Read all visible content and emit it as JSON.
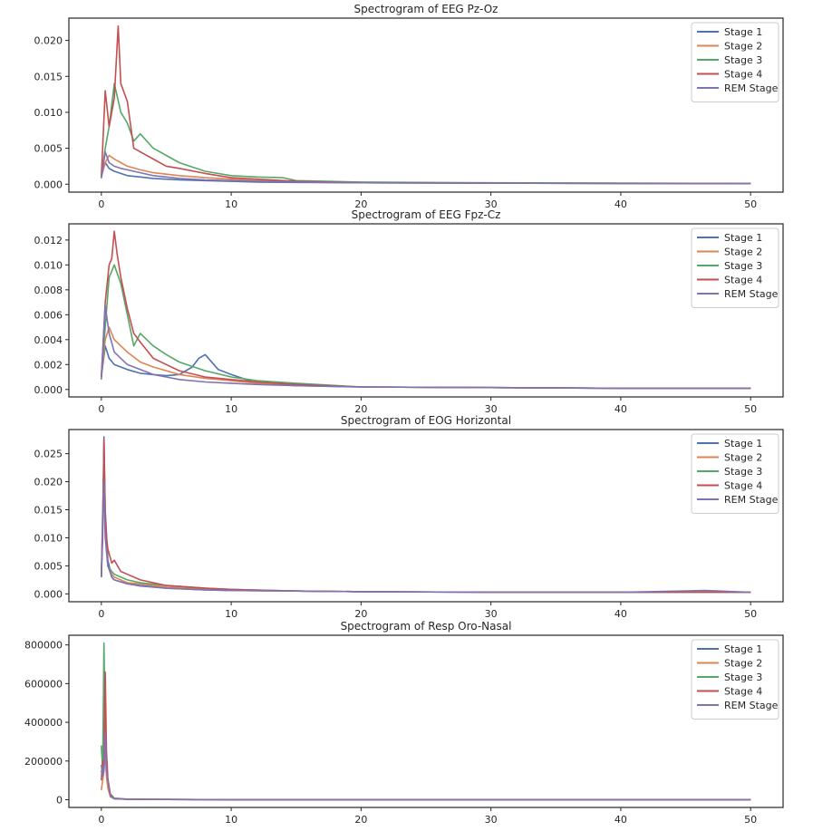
{
  "figure": {
    "colors": {
      "Stage 1": "#4c72b0",
      "Stage 2": "#dd8452",
      "Stage 3": "#55a868",
      "Stage 4": "#c44e52",
      "REM Stage": "#8172b3"
    }
  },
  "chart_data": [
    {
      "type": "line",
      "title": "Spectrogram of EEG Pz-Oz",
      "xlabel": "",
      "ylabel": "",
      "xlim": [
        -2.5,
        52.5
      ],
      "ylim": [
        -0.0011,
        0.0231
      ],
      "xticks": [
        "0",
        "10",
        "20",
        "30",
        "40",
        "50"
      ],
      "yticks": [
        "0.000",
        "0.005",
        "0.010",
        "0.015",
        "0.020"
      ],
      "ytick_values": [
        0,
        0.005,
        0.01,
        0.015,
        0.02
      ],
      "grid": false,
      "legend": "top-right",
      "series": [
        {
          "name": "Stage 1",
          "x": [
            0,
            0.3,
            0.6,
            1,
            1.5,
            2,
            3,
            4,
            5,
            6,
            8,
            10,
            12,
            15,
            20,
            30,
            40,
            50
          ],
          "y": [
            0.0012,
            0.003,
            0.0022,
            0.0018,
            0.0015,
            0.0012,
            0.001,
            0.0008,
            0.0007,
            0.0006,
            0.0005,
            0.0004,
            0.0003,
            0.00025,
            0.0002,
            0.00015,
            0.00012,
            0.0001
          ]
        },
        {
          "name": "Stage 2",
          "x": [
            0,
            0.3,
            0.6,
            1,
            1.5,
            2,
            3,
            4,
            5,
            6,
            8,
            10,
            12,
            15,
            20,
            30,
            40,
            50
          ],
          "y": [
            0.001,
            0.003,
            0.004,
            0.0035,
            0.003,
            0.0025,
            0.002,
            0.0016,
            0.0014,
            0.0012,
            0.0009,
            0.0007,
            0.0005,
            0.0004,
            0.0002,
            0.00015,
            0.0001,
            0.0001
          ]
        },
        {
          "name": "Stage 3",
          "x": [
            0,
            0.3,
            0.6,
            1,
            1.5,
            2,
            2.5,
            3,
            4,
            5,
            6,
            8,
            10,
            12,
            14,
            15,
            20,
            30,
            40,
            50
          ],
          "y": [
            0.001,
            0.005,
            0.008,
            0.014,
            0.01,
            0.0085,
            0.006,
            0.007,
            0.005,
            0.004,
            0.003,
            0.0018,
            0.0012,
            0.001,
            0.0009,
            0.0005,
            0.0003,
            0.0002,
            0.00015,
            0.0001
          ]
        },
        {
          "name": "Stage 4",
          "x": [
            0,
            0.3,
            0.6,
            0.8,
            1,
            1.3,
            1.5,
            2,
            2.5,
            3,
            4,
            5,
            6,
            8,
            10,
            12,
            15,
            20,
            30,
            40,
            50
          ],
          "y": [
            0.001,
            0.013,
            0.008,
            0.01,
            0.012,
            0.022,
            0.014,
            0.0115,
            0.005,
            0.0045,
            0.0035,
            0.0025,
            0.0022,
            0.0015,
            0.0009,
            0.0007,
            0.0004,
            0.0002,
            0.00015,
            0.0001,
            0.0001
          ]
        },
        {
          "name": "REM Stage",
          "x": [
            0,
            0.3,
            0.6,
            1,
            1.5,
            2,
            3,
            4,
            5,
            6,
            8,
            10,
            12,
            15,
            20,
            30,
            40,
            50
          ],
          "y": [
            0.0008,
            0.0045,
            0.003,
            0.0025,
            0.0022,
            0.002,
            0.0016,
            0.0012,
            0.001,
            0.0008,
            0.0006,
            0.0005,
            0.0004,
            0.0003,
            0.0002,
            0.00015,
            0.0001,
            0.0001
          ]
        }
      ]
    },
    {
      "type": "line",
      "title": "Spectrogram of EEG Fpz-Cz",
      "xlabel": "",
      "ylabel": "",
      "xlim": [
        -2.5,
        52.5
      ],
      "ylim": [
        -0.0006,
        0.0133
      ],
      "xticks": [
        "0",
        "10",
        "20",
        "30",
        "40",
        "50"
      ],
      "yticks": [
        "0.000",
        "0.002",
        "0.004",
        "0.006",
        "0.008",
        "0.010",
        "0.012"
      ],
      "ytick_values": [
        0,
        0.002,
        0.004,
        0.006,
        0.008,
        0.01,
        0.012
      ],
      "grid": false,
      "legend": "top-right",
      "series": [
        {
          "name": "Stage 1",
          "x": [
            0,
            0.3,
            0.6,
            1,
            1.5,
            2,
            3,
            4,
            5,
            6,
            7,
            7.5,
            8,
            9,
            10,
            12,
            15,
            20,
            30,
            40,
            50
          ],
          "y": [
            0.001,
            0.0035,
            0.0025,
            0.002,
            0.0018,
            0.0016,
            0.0013,
            0.0012,
            0.0011,
            0.0012,
            0.0018,
            0.0025,
            0.0028,
            0.0016,
            0.0012,
            0.0005,
            0.0003,
            0.0002,
            0.00015,
            0.0001,
            0.0001
          ]
        },
        {
          "name": "Stage 2",
          "x": [
            0,
            0.3,
            0.6,
            1,
            1.5,
            2,
            3,
            4,
            5,
            6,
            8,
            10,
            12,
            15,
            20,
            30,
            40,
            50
          ],
          "y": [
            0.001,
            0.004,
            0.005,
            0.004,
            0.0035,
            0.003,
            0.0022,
            0.0018,
            0.0015,
            0.0012,
            0.0009,
            0.0007,
            0.0005,
            0.0004,
            0.0002,
            0.00015,
            0.0001,
            0.0001
          ]
        },
        {
          "name": "Stage 3",
          "x": [
            0,
            0.3,
            0.6,
            0.8,
            1,
            1.5,
            2,
            2.5,
            3,
            4,
            5,
            6,
            8,
            10,
            12,
            15,
            20,
            30,
            40,
            50
          ],
          "y": [
            0.001,
            0.005,
            0.009,
            0.0095,
            0.01,
            0.0085,
            0.006,
            0.0035,
            0.0045,
            0.0035,
            0.0028,
            0.0022,
            0.0015,
            0.001,
            0.0007,
            0.0005,
            0.0002,
            0.00015,
            0.0001,
            0.0001
          ]
        },
        {
          "name": "Stage 4",
          "x": [
            0,
            0.3,
            0.6,
            0.8,
            1,
            1.2,
            1.5,
            2,
            2.5,
            3,
            4,
            5,
            6,
            8,
            10,
            12,
            15,
            20,
            30,
            40,
            50
          ],
          "y": [
            0.001,
            0.007,
            0.01,
            0.0105,
            0.0127,
            0.011,
            0.009,
            0.0065,
            0.0045,
            0.0038,
            0.0025,
            0.002,
            0.0015,
            0.001,
            0.0008,
            0.0006,
            0.0004,
            0.0002,
            0.00015,
            0.0001,
            0.0001
          ]
        },
        {
          "name": "REM Stage",
          "x": [
            0,
            0.3,
            0.6,
            1,
            1.5,
            2,
            3,
            4,
            5,
            6,
            8,
            10,
            12,
            15,
            20,
            30,
            40,
            50
          ],
          "y": [
            0.0008,
            0.0067,
            0.0045,
            0.003,
            0.0025,
            0.002,
            0.0016,
            0.0012,
            0.001,
            0.0008,
            0.0006,
            0.0005,
            0.0004,
            0.0003,
            0.0002,
            0.00015,
            0.0001,
            0.0001
          ]
        }
      ]
    },
    {
      "type": "line",
      "title": "Spectrogram of EOG Horizontal",
      "xlabel": "",
      "ylabel": "",
      "xlim": [
        -2.5,
        52.5
      ],
      "ylim": [
        -0.0014,
        0.0293
      ],
      "xticks": [
        "0",
        "10",
        "20",
        "30",
        "40",
        "50"
      ],
      "yticks": [
        "0.000",
        "0.005",
        "0.010",
        "0.015",
        "0.020",
        "0.025"
      ],
      "ytick_values": [
        0,
        0.005,
        0.01,
        0.015,
        0.02,
        0.025
      ],
      "grid": false,
      "legend": "top-right",
      "series": [
        {
          "name": "Stage 1",
          "x": [
            0,
            0.1,
            0.2,
            0.3,
            0.5,
            0.8,
            1,
            2,
            3,
            5,
            8,
            10,
            15,
            20,
            30,
            40,
            50
          ],
          "y": [
            0.003,
            0.012,
            0.028,
            0.015,
            0.006,
            0.003,
            0.0025,
            0.0018,
            0.0015,
            0.001,
            0.0007,
            0.0006,
            0.0005,
            0.0004,
            0.0003,
            0.0003,
            0.0003
          ]
        },
        {
          "name": "Stage 2",
          "x": [
            0,
            0.1,
            0.2,
            0.3,
            0.5,
            0.8,
            1,
            2,
            3,
            5,
            8,
            10,
            15,
            20,
            30,
            40,
            50
          ],
          "y": [
            0.003,
            0.015,
            0.024,
            0.012,
            0.005,
            0.0035,
            0.003,
            0.002,
            0.0018,
            0.0012,
            0.0008,
            0.0006,
            0.0005,
            0.0004,
            0.0003,
            0.0003,
            0.0003
          ]
        },
        {
          "name": "Stage 3",
          "x": [
            0,
            0.1,
            0.2,
            0.3,
            0.5,
            0.8,
            1,
            2,
            3,
            5,
            8,
            10,
            15,
            20,
            30,
            40,
            50
          ],
          "y": [
            0.003,
            0.014,
            0.022,
            0.011,
            0.005,
            0.004,
            0.0035,
            0.0025,
            0.002,
            0.0015,
            0.001,
            0.0008,
            0.0005,
            0.0004,
            0.0003,
            0.0003,
            0.0003
          ]
        },
        {
          "name": "Stage 4",
          "x": [
            0,
            0.1,
            0.2,
            0.3,
            0.4,
            0.5,
            0.8,
            1,
            1.5,
            2,
            3,
            5,
            8,
            10,
            15,
            20,
            30,
            40,
            50
          ],
          "y": [
            0.003,
            0.01,
            0.0275,
            0.014,
            0.01,
            0.008,
            0.0055,
            0.006,
            0.004,
            0.0035,
            0.0025,
            0.0015,
            0.001,
            0.0008,
            0.0005,
            0.0004,
            0.0003,
            0.0003,
            0.0003
          ]
        },
        {
          "name": "REM Stage",
          "x": [
            0,
            0.1,
            0.2,
            0.3,
            0.5,
            0.8,
            1,
            2,
            3,
            5,
            8,
            10,
            15,
            20,
            30,
            40,
            46.5,
            50
          ],
          "y": [
            0.003,
            0.012,
            0.02,
            0.01,
            0.005,
            0.003,
            0.0025,
            0.0018,
            0.0014,
            0.001,
            0.0007,
            0.0006,
            0.0005,
            0.0004,
            0.0003,
            0.0003,
            0.0006,
            0.0003
          ]
        }
      ]
    },
    {
      "type": "line",
      "title": "Spectrogram of Resp Oro-Nasal",
      "xlabel": "",
      "ylabel": "",
      "xlim": [
        -2.5,
        52.5
      ],
      "ylim": [
        -40000,
        850000
      ],
      "xticks": [
        "0",
        "10",
        "20",
        "30",
        "40",
        "50"
      ],
      "yticks": [
        "0",
        "200000",
        "400000",
        "600000",
        "800000"
      ],
      "ytick_values": [
        0,
        200000,
        400000,
        600000,
        800000
      ],
      "grid": false,
      "legend": "top-right",
      "series": [
        {
          "name": "Stage 1",
          "x": [
            0,
            0.1,
            0.2,
            0.3,
            0.4,
            0.5,
            0.7,
            1,
            2,
            5,
            10,
            20,
            30,
            40,
            50
          ],
          "y": [
            150000,
            120000,
            200000,
            380000,
            150000,
            80000,
            20000,
            5000,
            2000,
            1000,
            500,
            300,
            200,
            200,
            200
          ]
        },
        {
          "name": "Stage 2",
          "x": [
            0,
            0.1,
            0.2,
            0.3,
            0.4,
            0.5,
            0.7,
            1,
            2,
            5,
            10,
            20,
            30,
            40,
            50
          ],
          "y": [
            50000,
            100000,
            150000,
            250000,
            120000,
            60000,
            15000,
            5000,
            2000,
            1000,
            500,
            300,
            200,
            200,
            200
          ]
        },
        {
          "name": "Stage 3",
          "x": [
            0,
            0.1,
            0.2,
            0.3,
            0.4,
            0.5,
            0.7,
            1,
            2,
            5,
            10,
            20,
            30,
            40,
            50
          ],
          "y": [
            280000,
            150000,
            810000,
            300000,
            200000,
            100000,
            30000,
            8000,
            3000,
            1000,
            500,
            300,
            200,
            200,
            200
          ]
        },
        {
          "name": "Stage 4",
          "x": [
            0,
            0.1,
            0.2,
            0.3,
            0.4,
            0.5,
            0.7,
            1,
            2,
            5,
            10,
            20,
            30,
            40,
            50
          ],
          "y": [
            100000,
            200000,
            180000,
            660000,
            250000,
            110000,
            25000,
            6000,
            2500,
            1000,
            500,
            300,
            200,
            200,
            200
          ]
        },
        {
          "name": "REM Stage",
          "x": [
            0,
            0.1,
            0.2,
            0.3,
            0.4,
            0.5,
            0.7,
            1,
            2,
            5,
            10,
            20,
            30,
            40,
            50
          ],
          "y": [
            180000,
            120000,
            150000,
            350000,
            150000,
            100000,
            20000,
            5000,
            2000,
            1000,
            500,
            300,
            200,
            200,
            200
          ]
        }
      ]
    }
  ]
}
